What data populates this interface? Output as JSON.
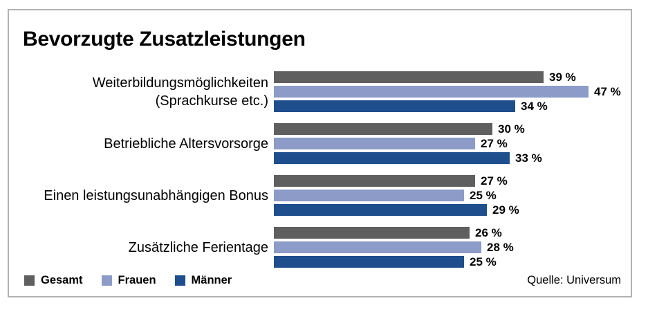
{
  "chart": {
    "title": "Bevorzugte Zusatzleistungen",
    "source": "Quelle: Universum"
  },
  "chart_data": {
    "type": "bar",
    "orientation": "horizontal",
    "title": "Bevorzugte Zusatzleistungen",
    "categories": [
      "Weiterbildungsmöglichkeiten (Sprachkurse etc.)",
      "Betriebliche Altersvorsorge",
      "Einen leistungsunabhängigen Bonus",
      "Zusätzliche Ferientage"
    ],
    "category_label_lines": [
      [
        "Weiterbildungsmöglichkeiten",
        "(Sprachkurse etc.)"
      ],
      [
        "Betriebliche Altersvorsorge"
      ],
      [
        "Einen leistungsunabhängigen Bonus"
      ],
      [
        "Zusätzliche Ferientage"
      ]
    ],
    "series": [
      {
        "name": "Gesamt",
        "color": "#5f5f5f",
        "values": [
          39,
          30,
          27,
          26
        ]
      },
      {
        "name": "Frauen",
        "color": "#8c9bc8",
        "values": [
          47,
          27,
          25,
          28
        ]
      },
      {
        "name": "Männer",
        "color": "#1e4e8c",
        "values": [
          34,
          33,
          29,
          25
        ]
      }
    ],
    "value_suffix": " %",
    "unit": "percent",
    "grid": false,
    "value_axis_shown": false,
    "legend_position": "bottom-left",
    "source": "Quelle: Universum",
    "frame_border_color": "#b2b2b2"
  }
}
